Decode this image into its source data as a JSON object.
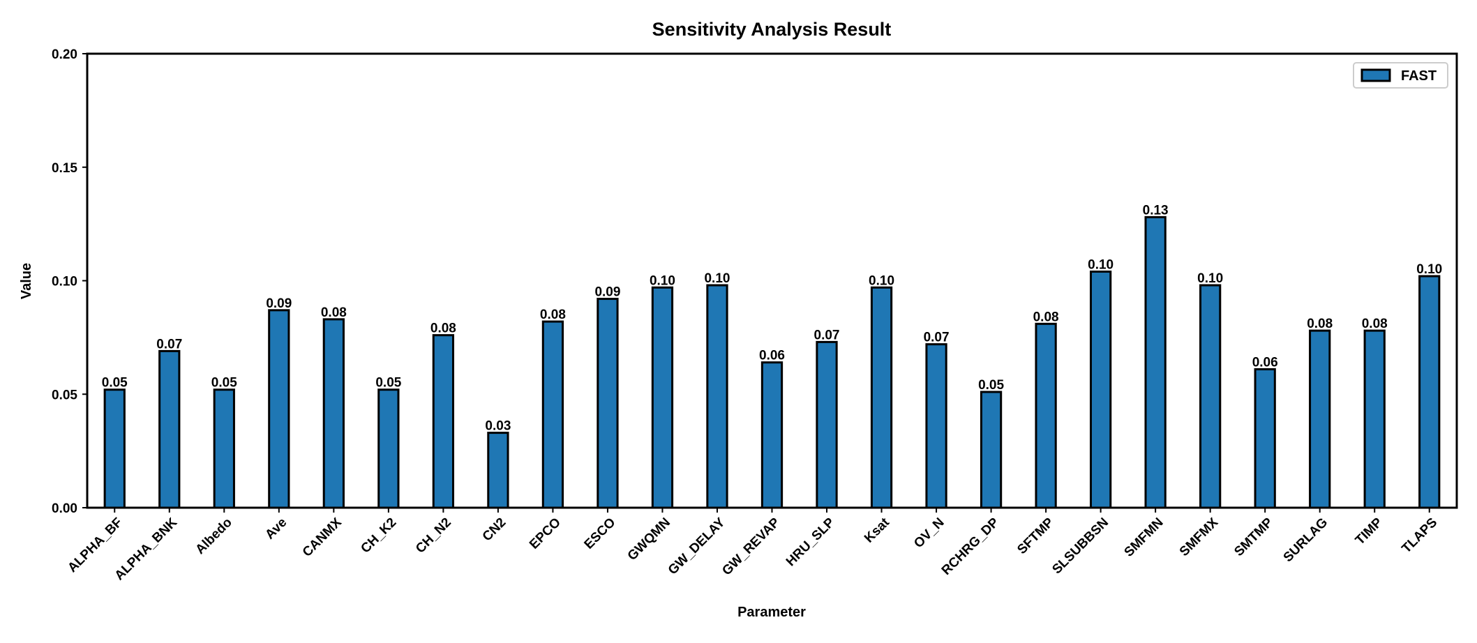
{
  "chart_data": {
    "type": "bar",
    "title": "Sensitivity Analysis Result",
    "xlabel": "Parameter",
    "ylabel": "Value",
    "ylim": [
      0,
      0.2
    ],
    "yticks": [
      "0.00",
      "0.05",
      "0.10",
      "0.15",
      "0.20"
    ],
    "ytick_values": [
      0,
      0.05,
      0.1,
      0.15,
      0.2
    ],
    "grid": false,
    "legend_position": "top-right",
    "bar_color": "#1f77b4",
    "edge_color": "#000000",
    "categories": [
      "ALPHA_BF",
      "ALPHA_BNK",
      "Albedo",
      "Ave",
      "CANMX",
      "CH_K2",
      "CH_N2",
      "CN2",
      "EPCO",
      "ESCO",
      "GWQMN",
      "GW_DELAY",
      "GW_REVAP",
      "HRU_SLP",
      "Ksat",
      "OV_N",
      "RCHRG_DP",
      "SFTMP",
      "SLSUBBSN",
      "SMFMN",
      "SMFMX",
      "SMTMP",
      "SURLAG",
      "TIMP",
      "TLAPS"
    ],
    "series": [
      {
        "name": "FAST",
        "values": [
          0.052,
          0.069,
          0.052,
          0.087,
          0.083,
          0.052,
          0.076,
          0.033,
          0.082,
          0.092,
          0.097,
          0.098,
          0.064,
          0.073,
          0.097,
          0.072,
          0.051,
          0.081,
          0.104,
          0.128,
          0.098,
          0.061,
          0.078,
          0.078,
          0.102
        ],
        "labels": [
          "0.05",
          "0.07",
          "0.05",
          "0.09",
          "0.08",
          "0.05",
          "0.08",
          "0.03",
          "0.08",
          "0.09",
          "0.10",
          "0.10",
          "0.06",
          "0.07",
          "0.10",
          "0.07",
          "0.05",
          "0.08",
          "0.10",
          "0.13",
          "0.10",
          "0.06",
          "0.08",
          "0.08",
          "0.10"
        ]
      }
    ]
  }
}
